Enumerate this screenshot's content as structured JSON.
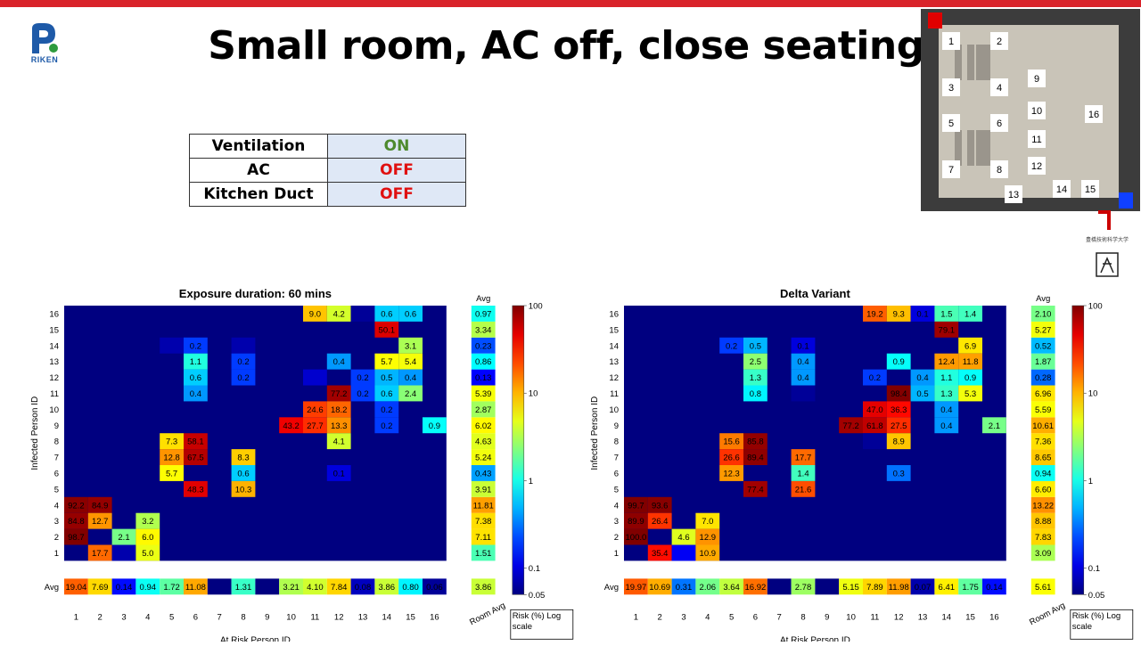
{
  "title": "Small room, AC off, close seating",
  "conditions": [
    {
      "label": "Ventilation",
      "value": "ON",
      "color": "#4e8a2e"
    },
    {
      "label": "AC",
      "value": "OFF",
      "color": "#e01010"
    },
    {
      "label": "Kitchen Duct",
      "value": "OFF",
      "color": "#e01010"
    }
  ],
  "logo_text": "RIKEN",
  "side_logo_text": "豊橋技術科学大学",
  "room_layout": {
    "seat_labels": [
      "1",
      "2",
      "3",
      "4",
      "5",
      "6",
      "7",
      "8",
      "9",
      "10",
      "11",
      "12",
      "13",
      "14",
      "15",
      "16"
    ]
  },
  "chart_data": [
    {
      "type": "heatmap",
      "title": "Exposure duration: 60 mins",
      "xlabel": "At Risk Person ID",
      "ylabel": "Infected Person ID",
      "x_ticks": [
        "1",
        "2",
        "3",
        "4",
        "5",
        "6",
        "7",
        "8",
        "9",
        "10",
        "11",
        "12",
        "13",
        "14",
        "15",
        "16"
      ],
      "y_ticks": [
        "1",
        "2",
        "3",
        "4",
        "5",
        "6",
        "7",
        "8",
        "9",
        "10",
        "11",
        "12",
        "13",
        "14",
        "15",
        "16"
      ],
      "room_avg_label": "Room Avg",
      "avg_label": "Avg",
      "colorbar": {
        "min": 0.05,
        "max": 100,
        "scale": "log",
        "ticks": [
          "100",
          "10",
          "1",
          "0.1",
          "0.05"
        ],
        "label": "Risk (%) Log scale"
      },
      "cells": [
        {
          "infected": 16,
          "at_risk": 11,
          "value": 9.0,
          "label": "9.0"
        },
        {
          "infected": 16,
          "at_risk": 12,
          "value": 4.2,
          "label": "4.2"
        },
        {
          "infected": 16,
          "at_risk": 13,
          "value": 0.06,
          "label": ""
        },
        {
          "infected": 16,
          "at_risk": 14,
          "value": 0.6,
          "label": "0.6"
        },
        {
          "infected": 16,
          "at_risk": 15,
          "value": 0.6,
          "label": "0.6"
        },
        {
          "infected": 15,
          "at_risk": 14,
          "value": 50.1,
          "label": "50.1"
        },
        {
          "infected": 14,
          "at_risk": 5,
          "value": 0.07,
          "label": ""
        },
        {
          "infected": 14,
          "at_risk": 6,
          "value": 0.2,
          "label": "0.2"
        },
        {
          "infected": 14,
          "at_risk": 8,
          "value": 0.07,
          "label": ""
        },
        {
          "infected": 14,
          "at_risk": 15,
          "value": 3.1,
          "label": "3.1"
        },
        {
          "infected": 13,
          "at_risk": 6,
          "value": 1.1,
          "label": "1.1"
        },
        {
          "infected": 13,
          "at_risk": 8,
          "value": 0.2,
          "label": "0.2"
        },
        {
          "infected": 13,
          "at_risk": 12,
          "value": 0.4,
          "label": "0.4"
        },
        {
          "infected": 13,
          "at_risk": 14,
          "value": 5.7,
          "label": "5.7"
        },
        {
          "infected": 13,
          "at_risk": 15,
          "value": 5.4,
          "label": "5.4"
        },
        {
          "infected": 12,
          "at_risk": 6,
          "value": 0.6,
          "label": "0.6"
        },
        {
          "infected": 12,
          "at_risk": 8,
          "value": 0.2,
          "label": "0.2"
        },
        {
          "infected": 12,
          "at_risk": 11,
          "value": 0.09,
          "label": ""
        },
        {
          "infected": 12,
          "at_risk": 13,
          "value": 0.2,
          "label": "0.2"
        },
        {
          "infected": 12,
          "at_risk": 14,
          "value": 0.5,
          "label": "0.5"
        },
        {
          "infected": 12,
          "at_risk": 15,
          "value": 0.4,
          "label": "0.4"
        },
        {
          "infected": 11,
          "at_risk": 6,
          "value": 0.4,
          "label": "0.4"
        },
        {
          "infected": 11,
          "at_risk": 12,
          "value": 77.2,
          "label": "77.2"
        },
        {
          "infected": 11,
          "at_risk": 13,
          "value": 0.2,
          "label": "0.2"
        },
        {
          "infected": 11,
          "at_risk": 14,
          "value": 0.6,
          "label": "0.6"
        },
        {
          "infected": 11,
          "at_risk": 15,
          "value": 2.4,
          "label": "2.4"
        },
        {
          "infected": 10,
          "at_risk": 11,
          "value": 24.6,
          "label": "24.6"
        },
        {
          "infected": 10,
          "at_risk": 12,
          "value": 18.2,
          "label": "18.2"
        },
        {
          "infected": 10,
          "at_risk": 14,
          "value": 0.2,
          "label": "0.2"
        },
        {
          "infected": 9,
          "at_risk": 10,
          "value": 43.2,
          "label": "43.2"
        },
        {
          "infected": 9,
          "at_risk": 11,
          "value": 27.7,
          "label": "27.7"
        },
        {
          "infected": 9,
          "at_risk": 12,
          "value": 13.3,
          "label": "13.3"
        },
        {
          "infected": 9,
          "at_risk": 14,
          "value": 0.2,
          "label": "0.2"
        },
        {
          "infected": 9,
          "at_risk": 16,
          "value": 0.9,
          "label": "0.9"
        },
        {
          "infected": 8,
          "at_risk": 5,
          "value": 7.3,
          "label": "7.3"
        },
        {
          "infected": 8,
          "at_risk": 6,
          "value": 58.1,
          "label": "58.1"
        },
        {
          "infected": 8,
          "at_risk": 12,
          "value": 4.1,
          "label": "4.1"
        },
        {
          "infected": 7,
          "at_risk": 5,
          "value": 12.8,
          "label": "12.8"
        },
        {
          "infected": 7,
          "at_risk": 6,
          "value": 67.5,
          "label": "67.5"
        },
        {
          "infected": 7,
          "at_risk": 8,
          "value": 8.3,
          "label": "8.3"
        },
        {
          "infected": 6,
          "at_risk": 5,
          "value": 5.7,
          "label": "5.7"
        },
        {
          "infected": 6,
          "at_risk": 8,
          "value": 0.6,
          "label": "0.6"
        },
        {
          "infected": 6,
          "at_risk": 12,
          "value": 0.1,
          "label": "0.1"
        },
        {
          "infected": 5,
          "at_risk": 6,
          "value": 48.3,
          "label": "48.3"
        },
        {
          "infected": 5,
          "at_risk": 8,
          "value": 10.3,
          "label": "10.3"
        },
        {
          "infected": 4,
          "at_risk": 1,
          "value": 92.2,
          "label": "92.2"
        },
        {
          "infected": 4,
          "at_risk": 2,
          "value": 84.9,
          "label": "84.9"
        },
        {
          "infected": 3,
          "at_risk": 1,
          "value": 84.8,
          "label": "84.8"
        },
        {
          "infected": 3,
          "at_risk": 2,
          "value": 12.7,
          "label": "12.7"
        },
        {
          "infected": 3,
          "at_risk": 4,
          "value": 3.2,
          "label": "3.2"
        },
        {
          "infected": 2,
          "at_risk": 1,
          "value": 98.7,
          "label": "98.7"
        },
        {
          "infected": 2,
          "at_risk": 3,
          "value": 2.1,
          "label": "2.1"
        },
        {
          "infected": 2,
          "at_risk": 4,
          "value": 6.0,
          "label": "6.0"
        },
        {
          "infected": 1,
          "at_risk": 2,
          "value": 17.7,
          "label": "17.7"
        },
        {
          "infected": 1,
          "at_risk": 3,
          "value": 0.07,
          "label": ""
        },
        {
          "infected": 1,
          "at_risk": 4,
          "value": 5.0,
          "label": "5.0"
        }
      ],
      "row_avg": [
        1.51,
        7.11,
        7.38,
        11.81,
        3.91,
        0.43,
        5.24,
        4.63,
        6.02,
        2.87,
        5.39,
        0.13,
        0.86,
        0.23,
        3.34,
        0.97
      ],
      "row_avg_labels": [
        "1.51",
        "7.11",
        "7.38",
        "11.81",
        "3.91",
        "0.43",
        "5.24",
        "4.63",
        "6.02",
        "2.87",
        "5.39",
        "0.13",
        "0.86",
        "0.23",
        "3.34",
        "0.97"
      ],
      "col_avg": [
        19.04,
        7.69,
        0.14,
        0.94,
        1.72,
        11.08,
        0.05,
        1.31,
        0.05,
        3.21,
        4.1,
        7.84,
        0.08,
        3.86,
        0.8,
        0.06
      ],
      "col_avg_labels": [
        "19.04",
        "7.69",
        "0.14",
        "0.94",
        "1.72",
        "11.08",
        "",
        "1.31",
        "",
        "3.21",
        "4.10",
        "7.84",
        "0.08",
        "3.86",
        "0.80",
        "0.06"
      ],
      "room_avg": 3.86,
      "room_avg_value_label": "3.86"
    },
    {
      "type": "heatmap",
      "title": "Delta Variant",
      "xlabel": "At Risk Person ID",
      "ylabel": "Infected Person ID",
      "x_ticks": [
        "1",
        "2",
        "3",
        "4",
        "5",
        "6",
        "7",
        "8",
        "9",
        "10",
        "11",
        "12",
        "13",
        "14",
        "15",
        "16"
      ],
      "y_ticks": [
        "1",
        "2",
        "3",
        "4",
        "5",
        "6",
        "7",
        "8",
        "9",
        "10",
        "11",
        "12",
        "13",
        "14",
        "15",
        "16"
      ],
      "room_avg_label": "Room Avg",
      "avg_label": "Avg",
      "colorbar": {
        "min": 0.05,
        "max": 100,
        "scale": "log",
        "ticks": [
          "100",
          "10",
          "1",
          "0.1",
          "0.05"
        ],
        "label": "Risk (%) Log scale"
      },
      "cells": [
        {
          "infected": 16,
          "at_risk": 11,
          "value": 19.2,
          "label": "19.2"
        },
        {
          "infected": 16,
          "at_risk": 12,
          "value": 9.3,
          "label": "9.3"
        },
        {
          "infected": 16,
          "at_risk": 13,
          "value": 0.1,
          "label": "0.1"
        },
        {
          "infected": 16,
          "at_risk": 14,
          "value": 1.5,
          "label": "1.5"
        },
        {
          "infected": 16,
          "at_risk": 15,
          "value": 1.4,
          "label": "1.4"
        },
        {
          "infected": 15,
          "at_risk": 14,
          "value": 79.1,
          "label": "79.1"
        },
        {
          "infected": 14,
          "at_risk": 5,
          "value": 0.2,
          "label": "0.2"
        },
        {
          "infected": 14,
          "at_risk": 6,
          "value": 0.5,
          "label": "0.5"
        },
        {
          "infected": 14,
          "at_risk": 8,
          "value": 0.1,
          "label": "0.1"
        },
        {
          "infected": 14,
          "at_risk": 15,
          "value": 6.9,
          "label": "6.9"
        },
        {
          "infected": 13,
          "at_risk": 6,
          "value": 2.5,
          "label": "2.5"
        },
        {
          "infected": 13,
          "at_risk": 8,
          "value": 0.4,
          "label": "0.4"
        },
        {
          "infected": 13,
          "at_risk": 12,
          "value": 0.9,
          "label": "0.9"
        },
        {
          "infected": 13,
          "at_risk": 14,
          "value": 12.4,
          "label": "12.4"
        },
        {
          "infected": 13,
          "at_risk": 15,
          "value": 11.8,
          "label": "11.8"
        },
        {
          "infected": 12,
          "at_risk": 6,
          "value": 1.3,
          "label": "1.3"
        },
        {
          "infected": 12,
          "at_risk": 8,
          "value": 0.4,
          "label": "0.4"
        },
        {
          "infected": 12,
          "at_risk": 11,
          "value": 0.2,
          "label": "0.2"
        },
        {
          "infected": 12,
          "at_risk": 13,
          "value": 0.4,
          "label": "0.4"
        },
        {
          "infected": 12,
          "at_risk": 14,
          "value": 1.1,
          "label": "1.1"
        },
        {
          "infected": 12,
          "at_risk": 15,
          "value": 0.9,
          "label": "0.9"
        },
        {
          "infected": 11,
          "at_risk": 6,
          "value": 0.8,
          "label": "0.8"
        },
        {
          "infected": 11,
          "at_risk": 8,
          "value": 0.06,
          "label": ""
        },
        {
          "infected": 11,
          "at_risk": 12,
          "value": 98.4,
          "label": "98.4"
        },
        {
          "infected": 11,
          "at_risk": 13,
          "value": 0.5,
          "label": "0.5"
        },
        {
          "infected": 11,
          "at_risk": 14,
          "value": 1.3,
          "label": "1.3"
        },
        {
          "infected": 11,
          "at_risk": 15,
          "value": 5.3,
          "label": "5.3"
        },
        {
          "infected": 10,
          "at_risk": 11,
          "value": 47.0,
          "label": "47.0"
        },
        {
          "infected": 10,
          "at_risk": 12,
          "value": 36.3,
          "label": "36.3"
        },
        {
          "infected": 10,
          "at_risk": 14,
          "value": 0.4,
          "label": "0.4"
        },
        {
          "infected": 9,
          "at_risk": 10,
          "value": 77.2,
          "label": "77.2"
        },
        {
          "infected": 9,
          "at_risk": 11,
          "value": 61.8,
          "label": "61.8"
        },
        {
          "infected": 9,
          "at_risk": 12,
          "value": 27.5,
          "label": "27.5"
        },
        {
          "infected": 9,
          "at_risk": 14,
          "value": 0.4,
          "label": "0.4"
        },
        {
          "infected": 9,
          "at_risk": 16,
          "value": 2.1,
          "label": "2.1"
        },
        {
          "infected": 8,
          "at_risk": 5,
          "value": 15.6,
          "label": "15.6"
        },
        {
          "infected": 8,
          "at_risk": 6,
          "value": 85.8,
          "label": "85.8"
        },
        {
          "infected": 8,
          "at_risk": 11,
          "value": 0.06,
          "label": ""
        },
        {
          "infected": 8,
          "at_risk": 12,
          "value": 8.9,
          "label": "8.9"
        },
        {
          "infected": 7,
          "at_risk": 5,
          "value": 26.6,
          "label": "26.6"
        },
        {
          "infected": 7,
          "at_risk": 6,
          "value": 89.4,
          "label": "89.4"
        },
        {
          "infected": 7,
          "at_risk": 8,
          "value": 17.7,
          "label": "17.7"
        },
        {
          "infected": 6,
          "at_risk": 5,
          "value": 12.3,
          "label": "12.3"
        },
        {
          "infected": 6,
          "at_risk": 8,
          "value": 1.4,
          "label": "1.4"
        },
        {
          "infected": 6,
          "at_risk": 12,
          "value": 0.3,
          "label": "0.3"
        },
        {
          "infected": 5,
          "at_risk": 6,
          "value": 77.4,
          "label": "77.4"
        },
        {
          "infected": 5,
          "at_risk": 8,
          "value": 21.6,
          "label": "21.6"
        },
        {
          "infected": 4,
          "at_risk": 1,
          "value": 99.7,
          "label": "99.7"
        },
        {
          "infected": 4,
          "at_risk": 2,
          "value": 93.6,
          "label": "93.6"
        },
        {
          "infected": 3,
          "at_risk": 1,
          "value": 89.9,
          "label": "89.9"
        },
        {
          "infected": 3,
          "at_risk": 2,
          "value": 26.4,
          "label": "26.4"
        },
        {
          "infected": 3,
          "at_risk": 4,
          "value": 7.0,
          "label": "7.0"
        },
        {
          "infected": 2,
          "at_risk": 1,
          "value": 100.0,
          "label": "100.0"
        },
        {
          "infected": 2,
          "at_risk": 3,
          "value": 4.6,
          "label": "4.6"
        },
        {
          "infected": 2,
          "at_risk": 4,
          "value": 12.9,
          "label": "12.9"
        },
        {
          "infected": 1,
          "at_risk": 2,
          "value": 35.4,
          "label": "35.4"
        },
        {
          "infected": 1,
          "at_risk": 3,
          "value": 0.12,
          "label": ""
        },
        {
          "infected": 1,
          "at_risk": 4,
          "value": 10.9,
          "label": "10.9"
        }
      ],
      "row_avg": [
        3.09,
        7.83,
        8.88,
        13.22,
        6.6,
        0.94,
        8.65,
        7.36,
        10.61,
        5.59,
        6.96,
        0.28,
        1.87,
        0.52,
        5.27,
        2.1
      ],
      "row_avg_labels": [
        "3.09",
        "7.83",
        "8.88",
        "13.22",
        "6.60",
        "0.94",
        "8.65",
        "7.36",
        "10.61",
        "5.59",
        "6.96",
        "0.28",
        "1.87",
        "0.52",
        "5.27",
        "2.10"
      ],
      "col_avg": [
        19.97,
        10.69,
        0.31,
        2.06,
        3.64,
        16.92,
        0.05,
        2.78,
        0.05,
        5.15,
        7.89,
        11.98,
        0.07,
        6.41,
        1.75,
        0.14
      ],
      "col_avg_labels": [
        "19.97",
        "10.69",
        "0.31",
        "2.06",
        "3.64",
        "16.92",
        "",
        "2.78",
        "",
        "5.15",
        "7.89",
        "11.98",
        "0.07",
        "6.41",
        "1.75",
        "0.14"
      ],
      "room_avg": 5.61,
      "room_avg_value_label": "5.61"
    }
  ]
}
